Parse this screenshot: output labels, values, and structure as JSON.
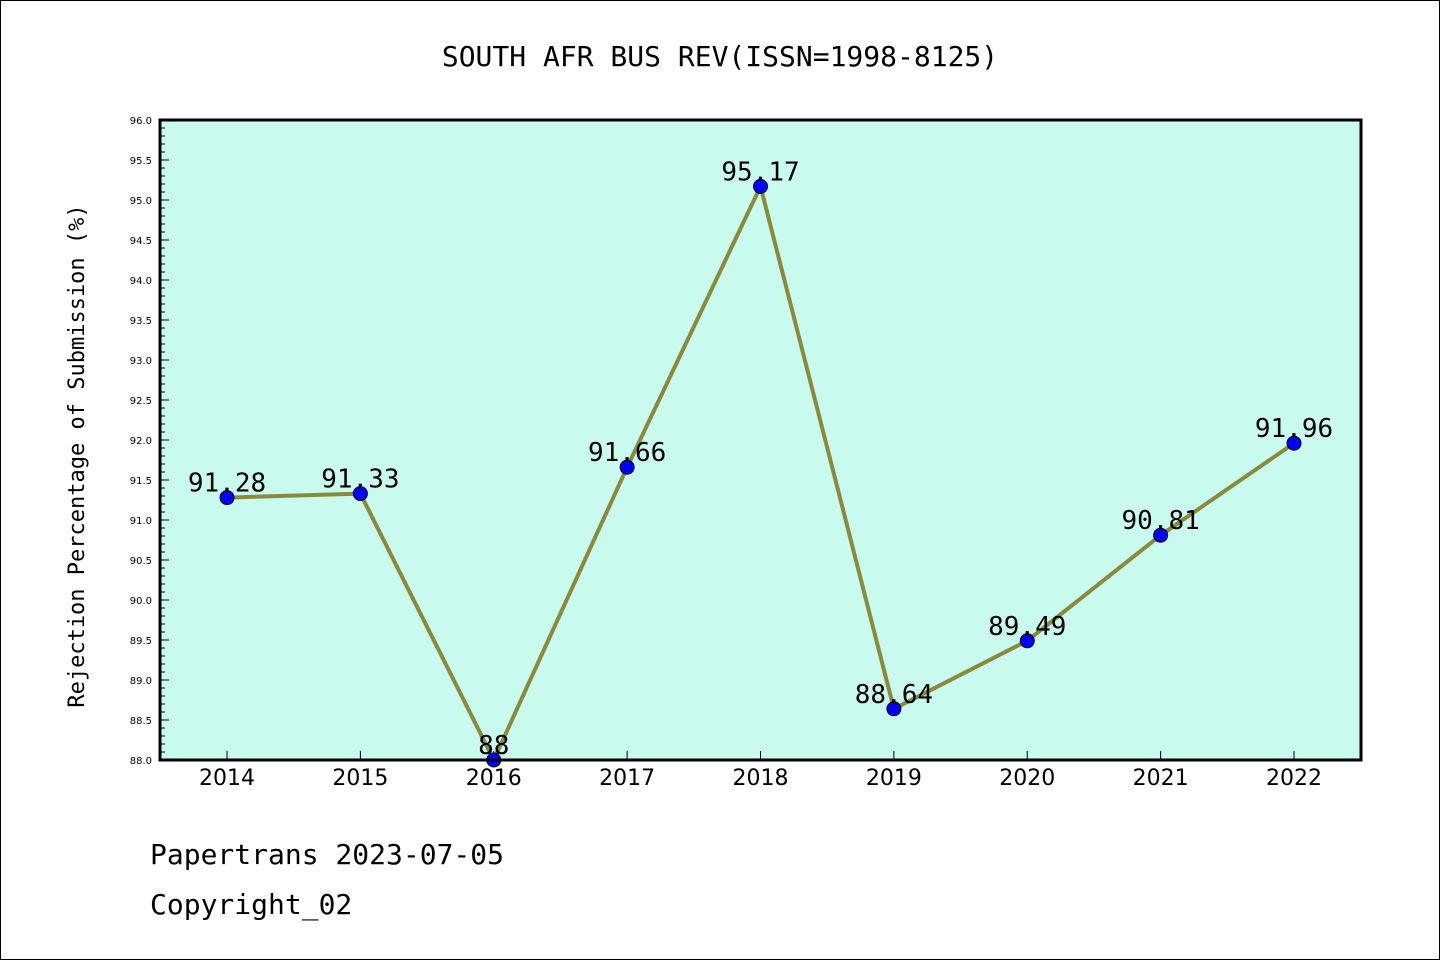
{
  "chart_data": {
    "type": "line",
    "title": "SOUTH AFR BUS REV(ISSN=1998-8125)",
    "xlabel": "",
    "ylabel": "Rejection Percentage of Submission (%)",
    "categories": [
      "2014",
      "2015",
      "2016",
      "2017",
      "2018",
      "2019",
      "2020",
      "2021",
      "2022"
    ],
    "values": [
      91.28,
      91.33,
      88,
      91.66,
      95.17,
      88.64,
      89.49,
      90.81,
      91.96
    ],
    "data_labels": [
      "91.28",
      "91.33",
      "88",
      "91.66",
      "95.17",
      "88.64",
      "89.49",
      "90.81",
      "91.96"
    ],
    "ylim": [
      88.0,
      96.0
    ],
    "yticks": [
      "88.0",
      "88.5",
      "89.0",
      "89.5",
      "90.0",
      "90.5",
      "91.0",
      "91.5",
      "92.0",
      "92.5",
      "93.0",
      "93.5",
      "94.0",
      "94.5",
      "95.0",
      "95.5",
      "96.0"
    ],
    "grid": false,
    "colors": {
      "plot_background": "#c8faee",
      "line": "#8b8a3a",
      "marker": "#0000ff"
    }
  },
  "footer": {
    "line1": "Papertrans 2023-07-05",
    "line2": "Copyright_02"
  }
}
